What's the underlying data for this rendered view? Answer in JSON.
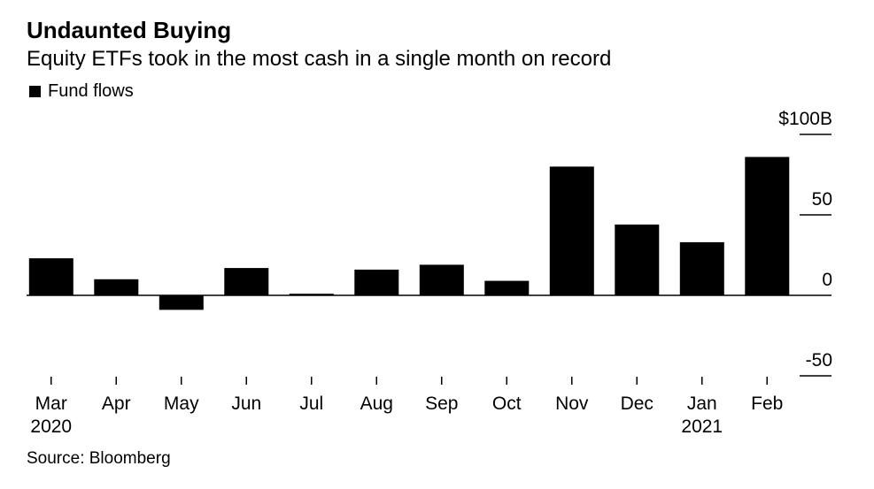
{
  "chart_data": {
    "type": "bar",
    "title": "Undaunted Buying",
    "subtitle": "Equity ETFs took in the most cash in a single month on record",
    "legend": "top-left",
    "grid": false,
    "colors": {
      "bar": "#000000",
      "axis": "#000000"
    },
    "categories": [
      "Mar",
      "Apr",
      "May",
      "Jun",
      "Jul",
      "Aug",
      "Sep",
      "Oct",
      "Nov",
      "Dec",
      "Jan",
      "Feb"
    ],
    "category_year_labels": [
      "2020",
      "",
      "",
      "",
      "",
      "",
      "",
      "",
      "",
      "",
      "2021",
      ""
    ],
    "series": [
      {
        "name": "Fund flows",
        "values": [
          23,
          10,
          -9,
          17,
          1,
          16,
          19,
          9,
          80,
          44,
          33,
          86
        ]
      }
    ],
    "y_ticks": [
      {
        "value": 100,
        "label": "$100B"
      },
      {
        "value": 50,
        "label": "50"
      },
      {
        "value": 0,
        "label": "0"
      },
      {
        "value": -50,
        "label": "-50"
      }
    ],
    "ylim": [
      -50,
      100
    ]
  },
  "source": "Source: Bloomberg"
}
